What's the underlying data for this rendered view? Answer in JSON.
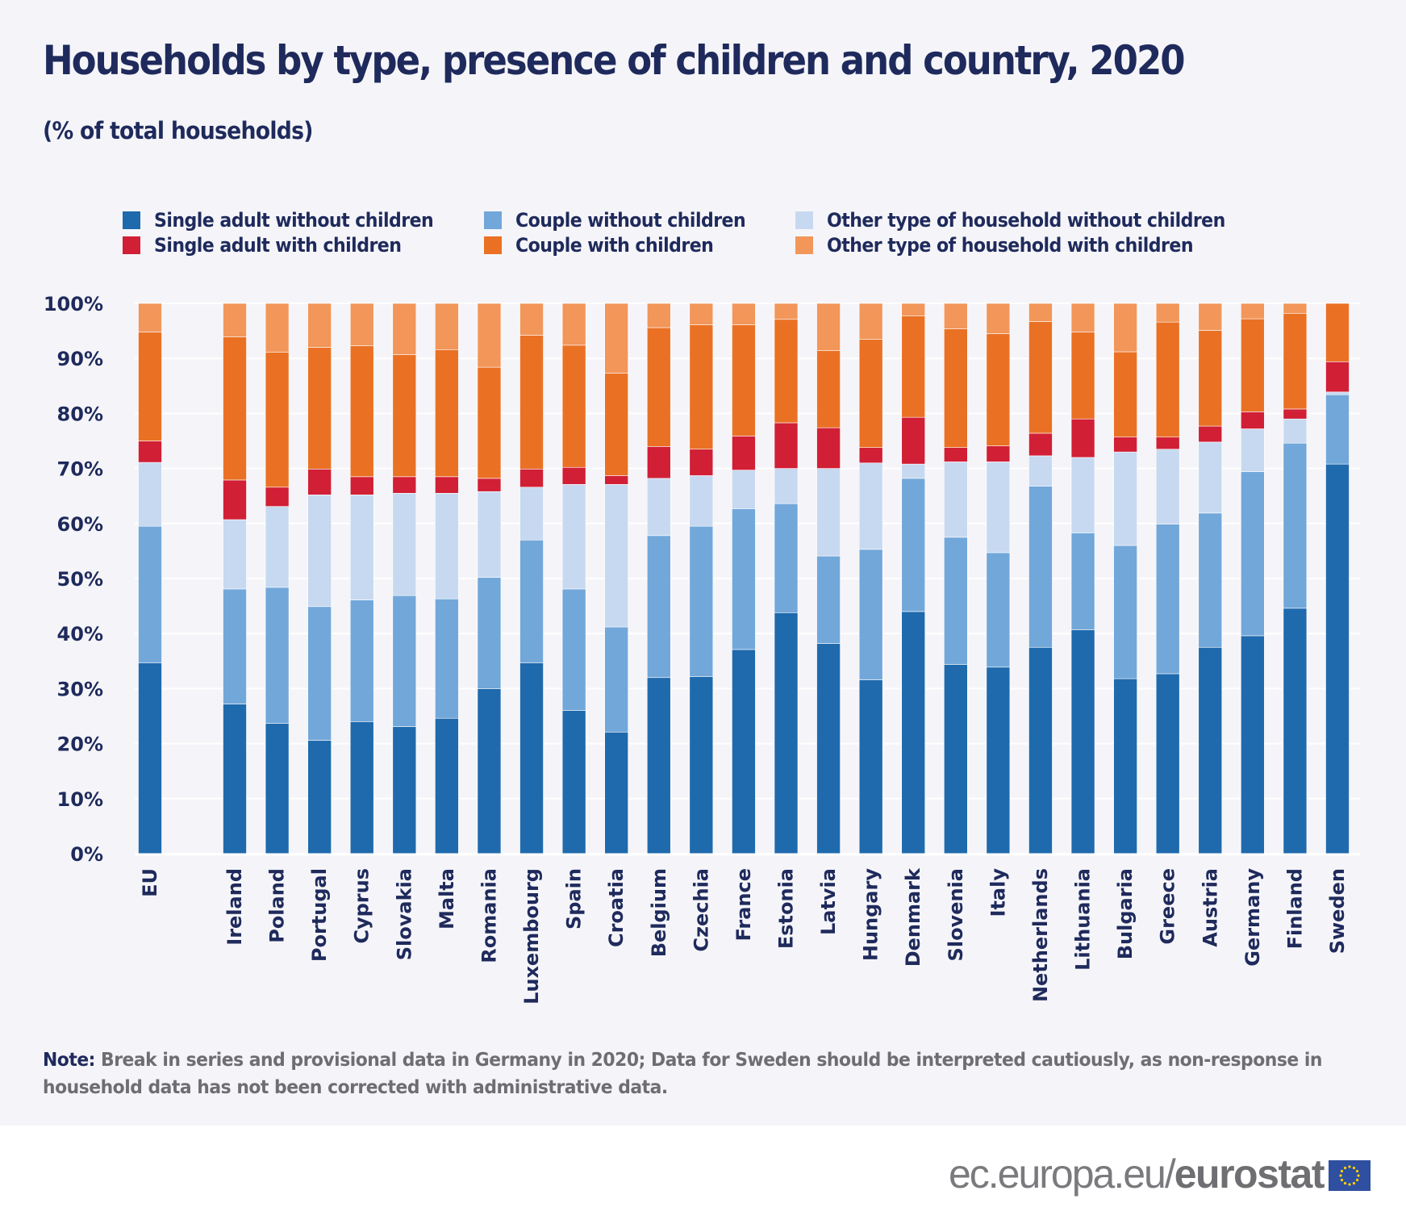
{
  "header": {
    "title": "Households by type, presence of children and country, 2020",
    "subtitle": "(% of total households)"
  },
  "legend": {
    "items": [
      {
        "label": "Single adult without children",
        "color": "#1f6aad"
      },
      {
        "label": "Single adult with children",
        "color": "#d11f36"
      },
      {
        "label": "Couple without children",
        "color": "#72a7da"
      },
      {
        "label": "Couple with children",
        "color": "#ea7124"
      },
      {
        "label": "Other type of household without children",
        "color": "#c7d9f0"
      },
      {
        "label": "Other type of household with children",
        "color": "#f2965a"
      }
    ]
  },
  "chart_data": {
    "type": "bar",
    "stacked": true,
    "title": "Households by type, presence of children and country, 2020",
    "subtitle": "(% of total households)",
    "xlabel": "",
    "ylabel": "",
    "ylim": [
      0,
      100
    ],
    "yticks": [
      "0%",
      "10%",
      "20%",
      "30%",
      "40%",
      "50%",
      "60%",
      "70%",
      "80%",
      "90%",
      "100%"
    ],
    "grid": true,
    "legend_position": "top",
    "categories": [
      "EU",
      "Ireland",
      "Poland",
      "Portugal",
      "Cyprus",
      "Slovakia",
      "Malta",
      "Romania",
      "Luxembourg",
      "Spain",
      "Croatia",
      "Belgium",
      "Czechia",
      "France",
      "Estonia",
      "Latvia",
      "Hungary",
      "Denmark",
      "Slovenia",
      "Italy",
      "Netherlands",
      "Lithuania",
      "Bulgaria",
      "Greece",
      "Austria",
      "Germany",
      "Finland",
      "Sweden"
    ],
    "gap_after_first": true,
    "series": [
      {
        "name": "Single adult without children",
        "color": "#1f6aad",
        "values": [
          34.7,
          27.2,
          23.7,
          20.6,
          24.0,
          23.1,
          24.6,
          30.0,
          34.7,
          26.0,
          22.1,
          32.0,
          32.2,
          37.1,
          43.8,
          38.2,
          31.6,
          44.0,
          34.4,
          33.9,
          37.5,
          40.7,
          31.8,
          32.7,
          37.5,
          39.6,
          44.6,
          70.8
        ]
      },
      {
        "name": "Couple without children",
        "color": "#72a7da",
        "values": [
          24.8,
          20.9,
          24.7,
          24.3,
          22.1,
          23.8,
          21.7,
          20.2,
          22.3,
          22.1,
          19.1,
          25.8,
          27.3,
          25.6,
          19.8,
          15.9,
          23.7,
          24.2,
          23.1,
          20.8,
          29.3,
          17.6,
          24.2,
          27.2,
          24.4,
          29.8,
          30.0,
          12.6
        ]
      },
      {
        "name": "Other type of household without children",
        "color": "#c7d9f0",
        "values": [
          11.6,
          12.6,
          14.7,
          20.3,
          19.1,
          18.6,
          19.2,
          15.6,
          9.6,
          19.0,
          25.9,
          10.4,
          9.2,
          7.0,
          6.4,
          15.9,
          15.7,
          2.6,
          13.7,
          16.5,
          5.5,
          13.7,
          17.0,
          13.6,
          12.9,
          7.8,
          4.4,
          0.5
        ]
      },
      {
        "name": "Single adult with children",
        "color": "#d11f36",
        "values": [
          3.9,
          7.2,
          3.5,
          4.7,
          3.3,
          3.0,
          3.0,
          2.4,
          3.3,
          3.1,
          1.6,
          5.8,
          4.8,
          6.2,
          8.3,
          7.4,
          2.8,
          8.5,
          2.6,
          2.9,
          4.1,
          7.0,
          2.7,
          2.2,
          2.9,
          3.1,
          1.8,
          5.5
        ]
      },
      {
        "name": "Couple with children",
        "color": "#ea7124",
        "values": [
          19.8,
          26.0,
          24.5,
          22.1,
          23.8,
          22.2,
          23.1,
          20.2,
          24.3,
          22.2,
          18.6,
          21.6,
          22.6,
          20.2,
          18.8,
          14.0,
          19.7,
          18.4,
          21.6,
          20.4,
          20.3,
          15.8,
          15.5,
          20.9,
          17.4,
          16.9,
          17.4,
          10.6
        ]
      },
      {
        "name": "Other type of household with children",
        "color": "#f2965a",
        "values": [
          5.2,
          6.1,
          8.9,
          8.0,
          7.7,
          9.3,
          8.4,
          11.6,
          5.8,
          7.6,
          12.7,
          4.4,
          3.9,
          3.9,
          2.9,
          8.6,
          6.5,
          2.3,
          4.6,
          5.5,
          3.3,
          5.2,
          8.8,
          3.4,
          4.9,
          2.8,
          1.8,
          0.0
        ]
      }
    ]
  },
  "note": {
    "label": "Note:",
    "text": " Break in series and provisional data in Germany in 2020; Data for Sweden should be interpreted cautiously, as non-response in household data has not been corrected with administrative data."
  },
  "footer": {
    "url": "ec.europa.eu/",
    "brand": "eurostat",
    "flag_icon": "eu-flag-icon"
  }
}
